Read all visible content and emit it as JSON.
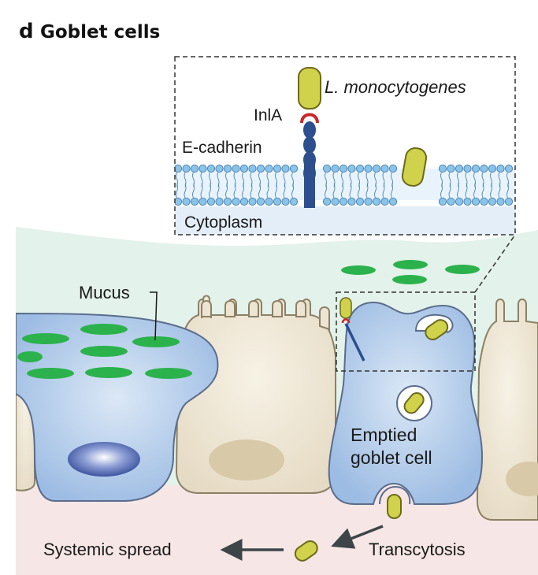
{
  "panel": {
    "letter": "d",
    "title": "Goblet cells"
  },
  "labels": {
    "bacterium": "L. monocytogenes",
    "inla": "InlA",
    "ecadherin": "E-cadherin",
    "cytoplasm": "Cytoplasm",
    "mucus": "Mucus",
    "emptied_line1": "Emptied",
    "emptied_line2": "goblet cell",
    "systemic": "Systemic spread",
    "transcytosis": "Transcytosis"
  },
  "colors": {
    "mucus_layer": "#e3f2ea",
    "lamina_propria": "#f6e7e6",
    "enterocyte": "#ede4d2",
    "enterocyte_outline": "#8c8066",
    "nucleus": "#d8c9a8",
    "goblet_cell": "#a9c6e8",
    "goblet_nucleus": "#3f56a6",
    "mucus_granule": "#2bb24c",
    "bacterium": "#cfd24a",
    "bacterium_outline": "#6d6a1c",
    "inla": "#c8282a",
    "ecadherin": "#2d4f8e",
    "membrane_head": "#8cc4e8",
    "inset_background": "#e4eef8",
    "arrow": "#3d4548"
  }
}
